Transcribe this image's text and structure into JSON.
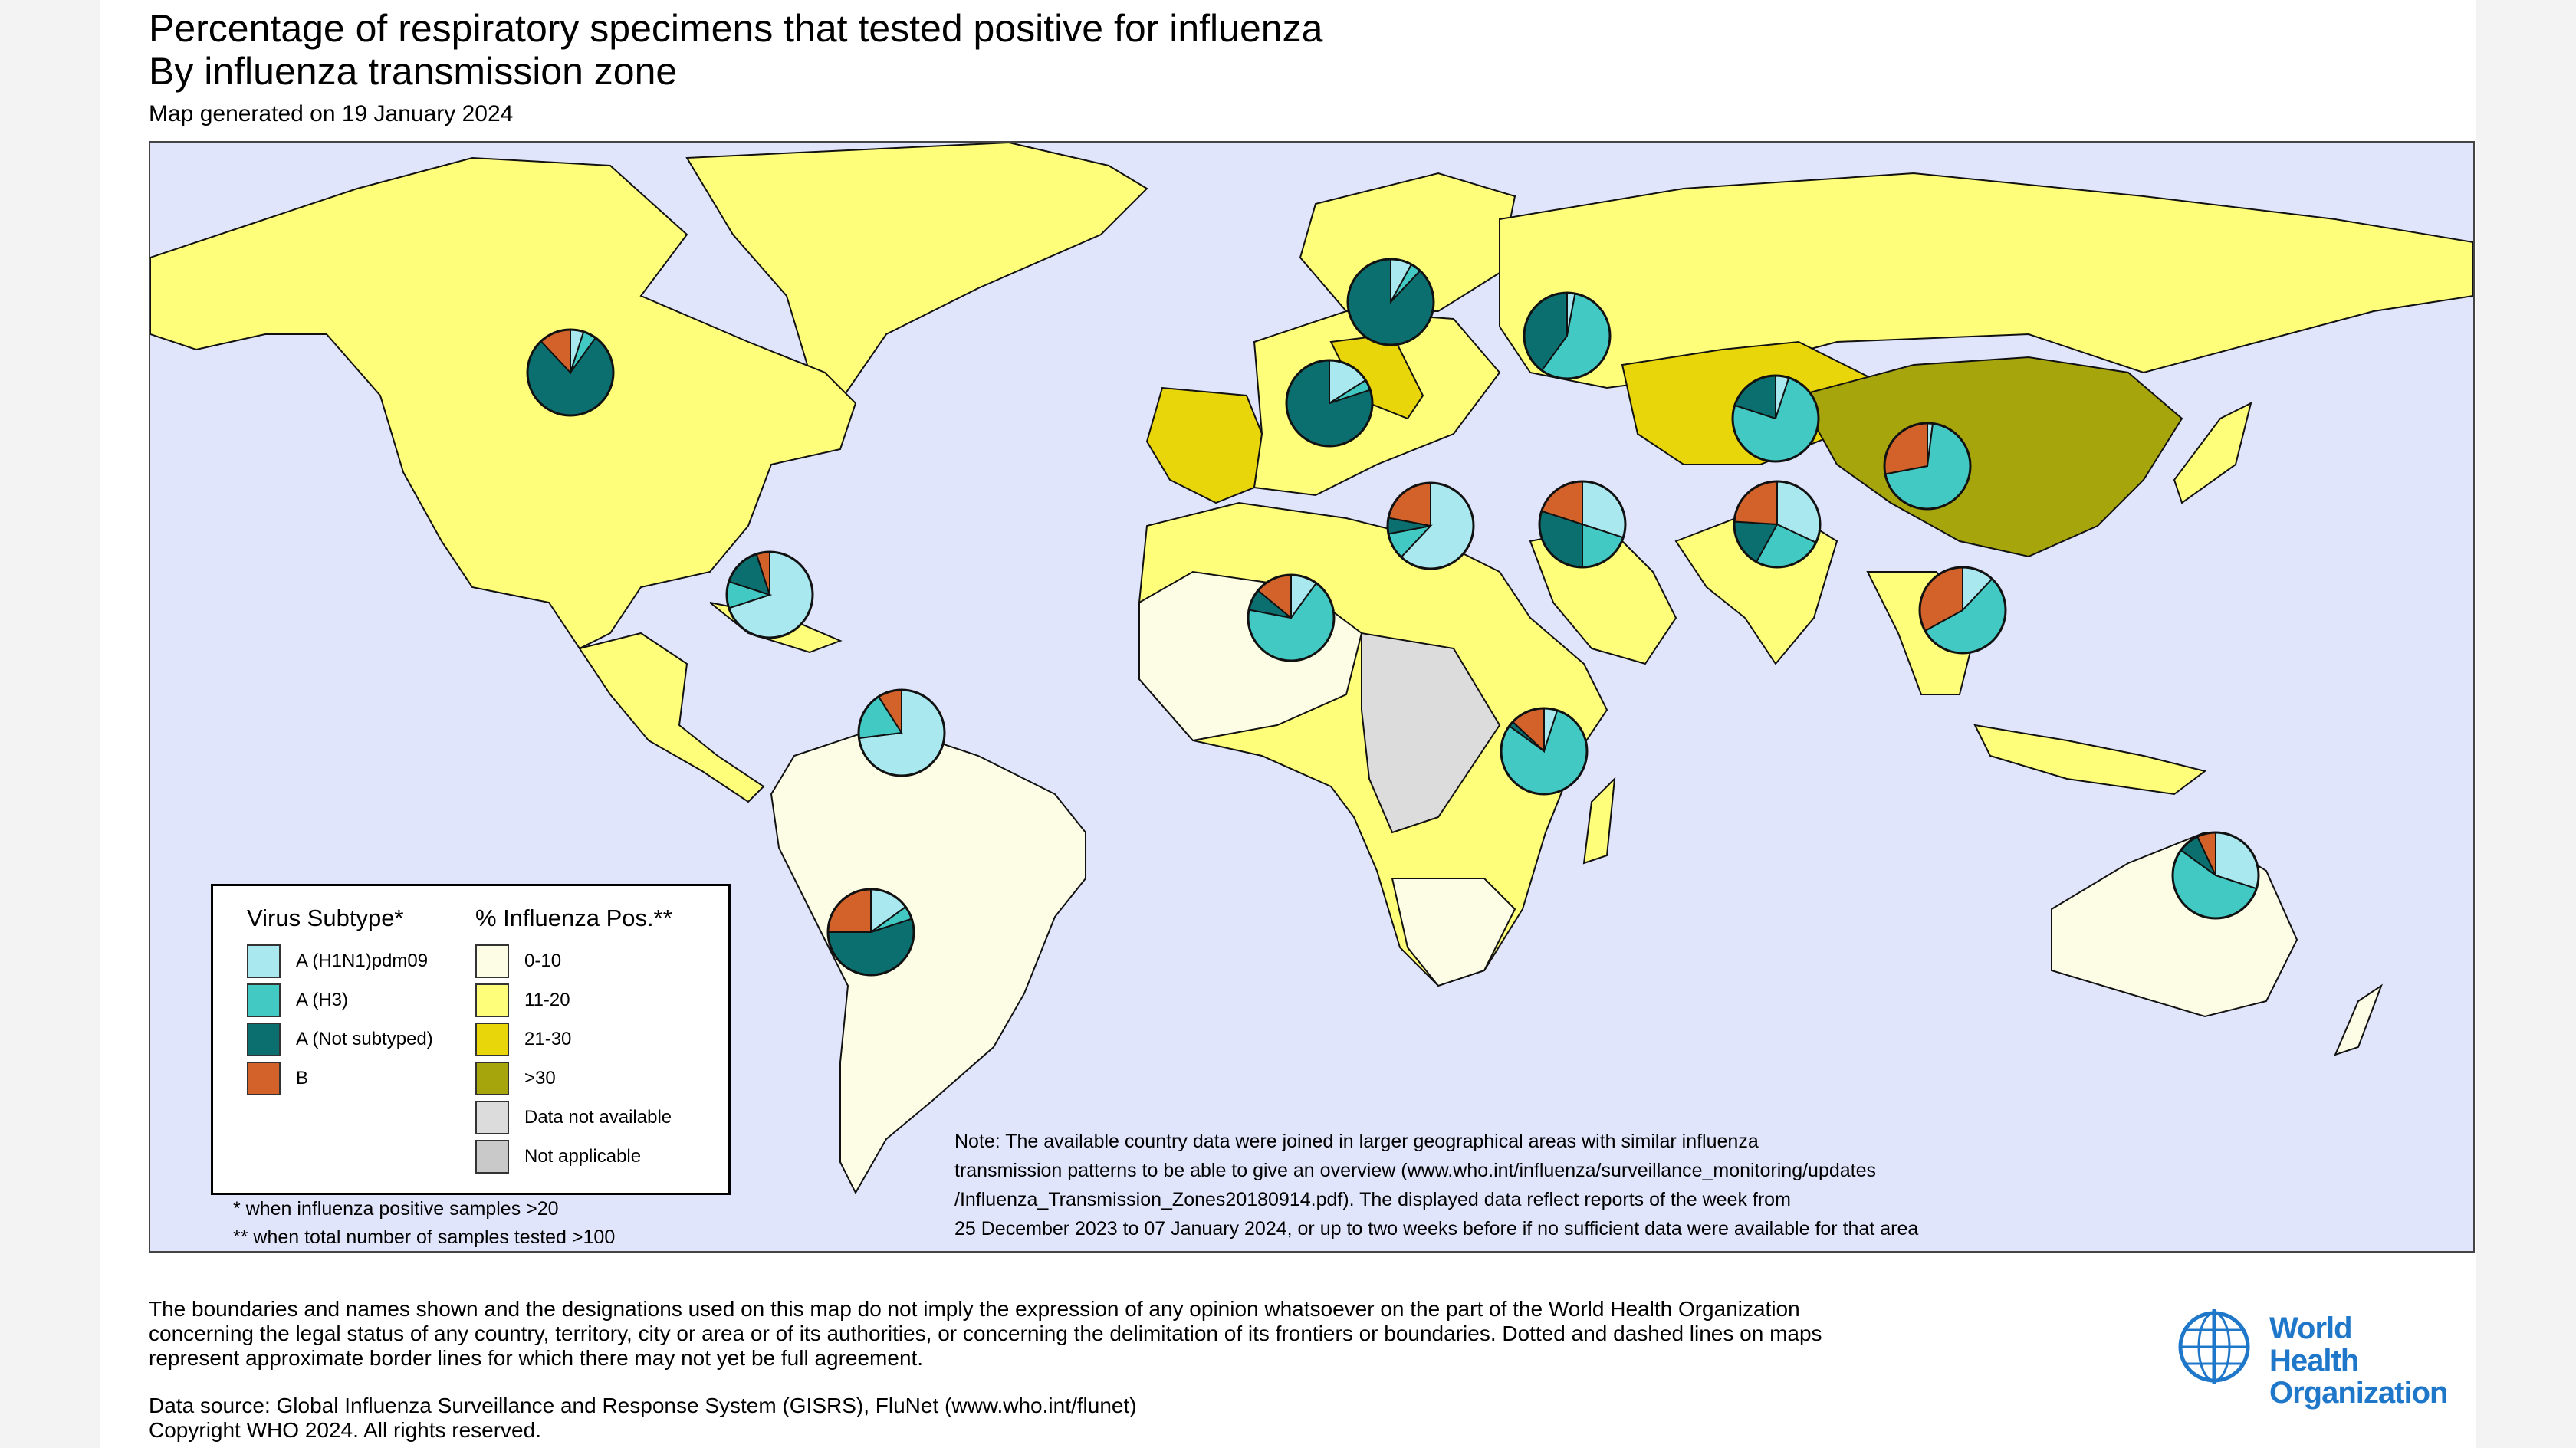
{
  "title": "Percentage of respiratory specimens that tested positive for influenza",
  "subtitle": "By influenza transmission zone",
  "generated": "Map generated on 19 January 2024",
  "colors": {
    "ocean": "#e1e5fb",
    "h1n1": "#a9e8ef",
    "h3": "#43c9c3",
    "not_subtyped": "#0b6f6f",
    "b": "#d2622a",
    "pos_0_10": "#fdfde6",
    "pos_11_20": "#fefe7a",
    "pos_21_30": "#e9d60a",
    "pos_gt30": "#a6a50c",
    "data_not_available": "#dcdcdc",
    "not_applicable": "#c9c9c9"
  },
  "legend": {
    "subtype_header": "Virus Subtype*",
    "positivity_header": "% Influenza Pos.**",
    "subtypes": [
      {
        "label": "A (H1N1)pdm09",
        "color": "#a9e8ef"
      },
      {
        "label": "A (H3)",
        "color": "#43c9c3"
      },
      {
        "label": "A (Not subtyped)",
        "color": "#0b6f6f"
      },
      {
        "label": "B",
        "color": "#d2622a"
      }
    ],
    "positivity": [
      {
        "label": "0-10",
        "color": "#fdfde6"
      },
      {
        "label": "11-20",
        "color": "#fefe7a"
      },
      {
        "label": "21-30",
        "color": "#e9d60a"
      },
      {
        "label": ">30",
        "color": "#a6a50c"
      },
      {
        "label": "Data not available",
        "color": "#dcdcdc"
      },
      {
        "label": "Not applicable",
        "color": "#c9c9c9"
      }
    ]
  },
  "footnotes": [
    "* when influenza positive samples >20",
    "** when total number of samples tested >100"
  ],
  "note": [
    "Note: The available country data were joined in larger geographical areas with similar influenza",
    "transmission patterns to be able to give an overview (www.who.int/influenza/surveillance_monitoring/updates",
    "/Influenza_Transmission_Zones20180914.pdf). The displayed data reflect reports of the week from",
    "25 December 2023 to 07 January 2024, or up to two weeks before if no sufficient data were available for that area"
  ],
  "disclaimer": [
    "The boundaries and names shown and the designations used on this map do not imply the expression of any opinion whatsoever on the part of the World Health Organization",
    "concerning the legal status of any country, territory, city or area or of its authorities, or concerning the delimitation of its frontiers or boundaries. Dotted and dashed lines on maps",
    "represent approximate border lines for which there may not yet be full agreement."
  ],
  "source": [
    "Data source: Global Influenza Surveillance and Response System (GISRS), FluNet (www.who.int/flunet)",
    "Copyright WHO 2024. All rights reserved."
  ],
  "who_logo": {
    "line1": "World Health",
    "line2": "Organization",
    "icon": "who-emblem-icon"
  },
  "zones": [
    {
      "name": "North America",
      "fractions": [
        0.05,
        0.05,
        0.78,
        0.12
      ]
    },
    {
      "name": "Central America and Caribbean",
      "fractions": [
        0.7,
        0.1,
        0.15,
        0.05
      ]
    },
    {
      "name": "Tropical South America",
      "fractions": [
        0.73,
        0.18,
        0.0,
        0.09
      ]
    },
    {
      "name": "Temperate South America",
      "fractions": [
        0.15,
        0.05,
        0.55,
        0.25
      ]
    },
    {
      "name": "Northern Europe",
      "fractions": [
        0.08,
        0.04,
        0.88,
        0.0
      ]
    },
    {
      "name": "South West Europe",
      "fractions": [
        0.16,
        0.04,
        0.8,
        0.0
      ]
    },
    {
      "name": "Eastern Europe",
      "fractions": [
        0.03,
        0.57,
        0.4,
        0.0
      ]
    },
    {
      "name": "Central Asia",
      "fractions": [
        0.05,
        0.75,
        0.2,
        0.0
      ]
    },
    {
      "name": "Northern Africa",
      "fractions": [
        0.62,
        0.1,
        0.06,
        0.22
      ]
    },
    {
      "name": "Western Asia",
      "fractions": [
        0.3,
        0.2,
        0.3,
        0.2
      ]
    },
    {
      "name": "Southern Asia",
      "fractions": [
        0.32,
        0.26,
        0.18,
        0.24
      ]
    },
    {
      "name": "Eastern Asia",
      "fractions": [
        0.02,
        0.7,
        0.0,
        0.28
      ]
    },
    {
      "name": "South East Asia",
      "fractions": [
        0.12,
        0.55,
        0.0,
        0.33
      ]
    },
    {
      "name": "Western Africa",
      "fractions": [
        0.1,
        0.68,
        0.08,
        0.14
      ]
    },
    {
      "name": "Eastern Africa",
      "fractions": [
        0.05,
        0.8,
        0.02,
        0.13
      ]
    },
    {
      "name": "Oceania",
      "fractions": [
        0.3,
        0.55,
        0.08,
        0.07
      ]
    }
  ]
}
